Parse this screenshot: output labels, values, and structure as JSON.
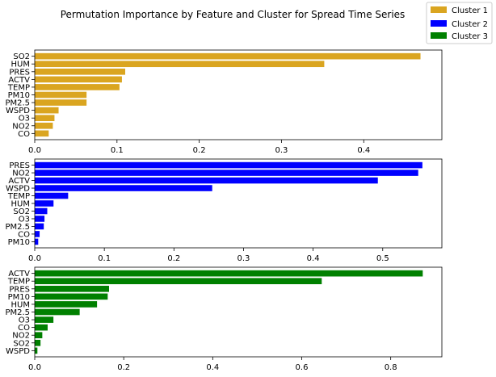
{
  "title": "Permutation Importance by Feature and Cluster for Spread Time Series",
  "legend": {
    "placement": "top-right",
    "entries": [
      {
        "label": "Cluster 1",
        "color": "#DAA520"
      },
      {
        "label": "Cluster 2",
        "color": "#0000FF"
      },
      {
        "label": "Cluster 3",
        "color": "#008000"
      }
    ]
  },
  "chart_data": [
    {
      "type": "bar",
      "orientation": "horizontal",
      "series_name": "Cluster 1",
      "color": "#DAA520",
      "categories": [
        "SO2",
        "HUM",
        "PRES",
        "ACTV",
        "TEMP",
        "PM10",
        "PM2.5",
        "WSPD",
        "O3",
        "NO2",
        "CO"
      ],
      "values": [
        0.469,
        0.352,
        0.11,
        0.106,
        0.103,
        0.063,
        0.063,
        0.029,
        0.024,
        0.022,
        0.017
      ],
      "xlim": [
        0,
        0.495
      ],
      "xticks": [
        0,
        0.1,
        0.2,
        0.3,
        0.4
      ],
      "xtick_labels": [
        "0.0",
        "0.1",
        "0.2",
        "0.3",
        "0.4"
      ],
      "grid": false
    },
    {
      "type": "bar",
      "orientation": "horizontal",
      "series_name": "Cluster 2",
      "color": "#0000FF",
      "categories": [
        "PRES",
        "NO2",
        "ACTV",
        "WSPD",
        "TEMP",
        "HUM",
        "SO2",
        "O3",
        "PM2.5",
        "CO",
        "PM10"
      ],
      "values": [
        0.557,
        0.551,
        0.493,
        0.255,
        0.048,
        0.027,
        0.018,
        0.014,
        0.013,
        0.007,
        0.005
      ],
      "xlim": [
        0,
        0.585
      ],
      "xticks": [
        0,
        0.1,
        0.2,
        0.3,
        0.4,
        0.5
      ],
      "xtick_labels": [
        "0.0",
        "0.1",
        "0.2",
        "0.3",
        "0.4",
        "0.5"
      ],
      "grid": false
    },
    {
      "type": "bar",
      "orientation": "horizontal",
      "series_name": "Cluster 3",
      "color": "#008000",
      "categories": [
        "ACTV",
        "TEMP",
        "PRES",
        "PM10",
        "HUM",
        "PM2.5",
        "O3",
        "CO",
        "NO2",
        "SO2",
        "WSPD"
      ],
      "values": [
        0.872,
        0.645,
        0.167,
        0.164,
        0.14,
        0.101,
        0.042,
        0.029,
        0.017,
        0.013,
        0.006
      ],
      "xlim": [
        0,
        0.915
      ],
      "xticks": [
        0,
        0.2,
        0.4,
        0.6,
        0.8
      ],
      "xtick_labels": [
        "0.0",
        "0.2",
        "0.4",
        "0.6",
        "0.8"
      ],
      "grid": false
    }
  ]
}
